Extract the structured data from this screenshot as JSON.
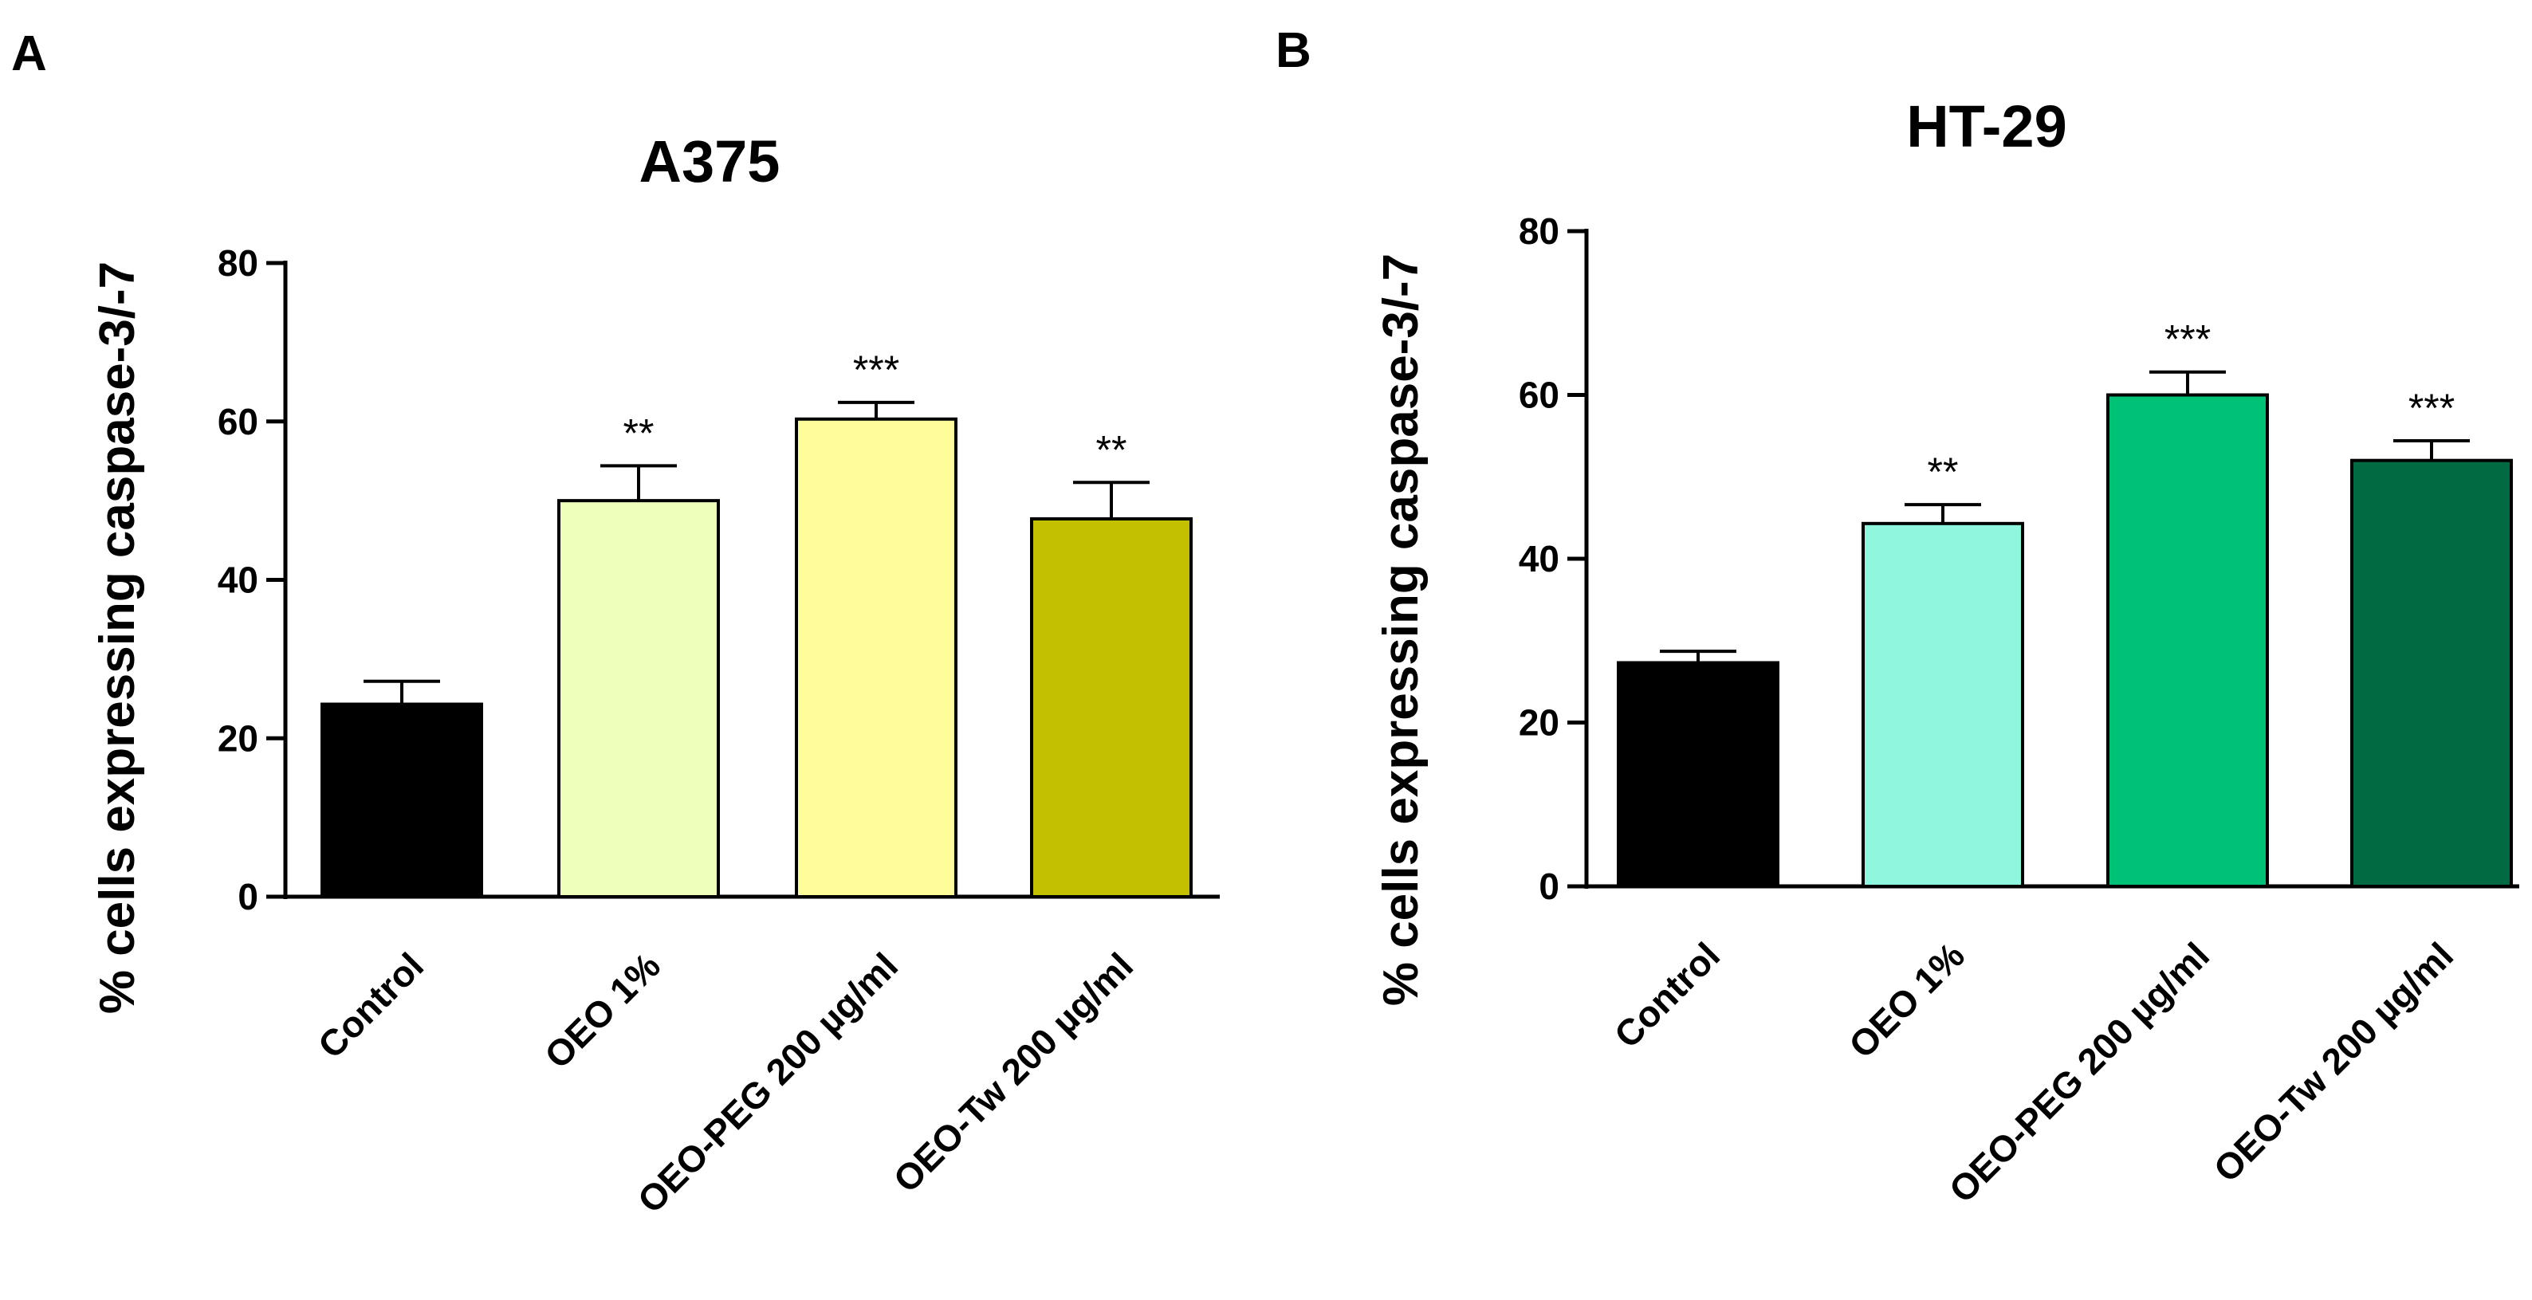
{
  "chart_data": [
    {
      "panel": "A",
      "type": "bar",
      "title": "A375",
      "ylabel": "% cells expressing caspase-3/-7",
      "xlabel": "",
      "ylim": [
        0,
        80
      ],
      "yticks": [
        "0",
        "20",
        "40",
        "60",
        "80"
      ],
      "categories": [
        "Control",
        "OEO 1%",
        "OEO-PEG 200 µg/ml",
        "OEO-Tw 200 µg/ml"
      ],
      "values": [
        24.3,
        50.0,
        60.3,
        47.7
      ],
      "errors": [
        2.9,
        4.4,
        2.1,
        4.6
      ],
      "significance": [
        "",
        "**",
        "***",
        "**"
      ],
      "colors": [
        "#000000",
        "#eeffbb",
        "#fffd99",
        "#c2c000"
      ]
    },
    {
      "panel": "B",
      "type": "bar",
      "title": "HT-29",
      "ylabel": "% cells expressing caspase-3/-7",
      "xlabel": "",
      "ylim": [
        0,
        80
      ],
      "yticks": [
        "0",
        "20",
        "40",
        "60",
        "80"
      ],
      "categories": [
        "Control",
        "OEO 1%",
        "OEO-PEG 200 µg/ml",
        "OEO-Tw 200 µg/ml"
      ],
      "values": [
        27.3,
        44.3,
        60.0,
        52.0
      ],
      "errors": [
        1.4,
        2.3,
        2.8,
        2.4
      ],
      "significance": [
        "",
        "**",
        "***",
        "***"
      ],
      "colors": [
        "#000000",
        "#8ff7dd",
        "#00c276",
        "#006a42"
      ]
    }
  ]
}
